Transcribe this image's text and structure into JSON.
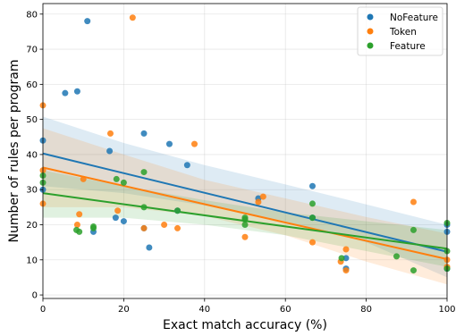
{
  "chart_data": {
    "type": "scatter",
    "xlabel": "Exact match accuracy (%)",
    "ylabel": "Number of rules per program",
    "xlim": [
      0,
      100
    ],
    "ylim": [
      -1,
      83
    ],
    "xticks": [
      0,
      20,
      40,
      60,
      80,
      100
    ],
    "yticks": [
      0,
      10,
      20,
      30,
      40,
      50,
      60,
      70,
      80
    ],
    "grid": true,
    "legend": "top-right",
    "series": [
      {
        "name": "NoFeature",
        "color": "#1f77b4",
        "points": [
          [
            0,
            44
          ],
          [
            0,
            30
          ],
          [
            5.5,
            57.5
          ],
          [
            8.5,
            58
          ],
          [
            11,
            78
          ],
          [
            12.5,
            18
          ],
          [
            16.5,
            41
          ],
          [
            18,
            22
          ],
          [
            20,
            21
          ],
          [
            25,
            46
          ],
          [
            25,
            19
          ],
          [
            26.3,
            13.5
          ],
          [
            31.3,
            43
          ],
          [
            33.3,
            24
          ],
          [
            35.7,
            37
          ],
          [
            53.3,
            27.5
          ],
          [
            66.7,
            31
          ],
          [
            66.7,
            22
          ],
          [
            75,
            10.5
          ],
          [
            75,
            7.5
          ],
          [
            100,
            18
          ],
          [
            100,
            7.5
          ],
          [
            100,
            20
          ]
        ],
        "fit": {
          "x": [
            0,
            100
          ],
          "y": [
            40.3,
            12.3
          ]
        },
        "ci": {
          "x": [
            0,
            20,
            40,
            60,
            80,
            100
          ],
          "upper": [
            50.8,
            43.3,
            37.0,
            31.5,
            25.8,
            20.0
          ],
          "lower": [
            31.0,
            29.0,
            25.5,
            21.0,
            15.0,
            5.0
          ]
        }
      },
      {
        "name": "Token",
        "color": "#ff7f0e",
        "points": [
          [
            0,
            54
          ],
          [
            0,
            35.5
          ],
          [
            0,
            26
          ],
          [
            8.5,
            20
          ],
          [
            9,
            23
          ],
          [
            10,
            33
          ],
          [
            16.7,
            46
          ],
          [
            18.5,
            24
          ],
          [
            22.2,
            79
          ],
          [
            25,
            19
          ],
          [
            30,
            20
          ],
          [
            33.3,
            19
          ],
          [
            37.5,
            43
          ],
          [
            50,
            16.5
          ],
          [
            53.3,
            26.5
          ],
          [
            54.5,
            28
          ],
          [
            66.7,
            15
          ],
          [
            73.7,
            9.5
          ],
          [
            75,
            13
          ],
          [
            75,
            7
          ],
          [
            91.7,
            26.5
          ],
          [
            100,
            10
          ],
          [
            100,
            8
          ]
        ],
        "fit": {
          "x": [
            0,
            100
          ],
          "y": [
            36.3,
            10.2
          ]
        },
        "ci": {
          "x": [
            0,
            20,
            40,
            60,
            80,
            100
          ],
          "upper": [
            47.5,
            40.0,
            32.8,
            27.5,
            22.2,
            17.5
          ],
          "lower": [
            25.0,
            25.0,
            22.5,
            17.0,
            9.5,
            3.0
          ]
        }
      },
      {
        "name": "Feature",
        "color": "#2ca02c",
        "points": [
          [
            0,
            34
          ],
          [
            0,
            32
          ],
          [
            8.3,
            18.5
          ],
          [
            9,
            18
          ],
          [
            12.5,
            19.5
          ],
          [
            12.5,
            19
          ],
          [
            18.2,
            33
          ],
          [
            20,
            32
          ],
          [
            25,
            35
          ],
          [
            25,
            25
          ],
          [
            33.3,
            24
          ],
          [
            50,
            20
          ],
          [
            50,
            21.5
          ],
          [
            50,
            22
          ],
          [
            66.7,
            26
          ],
          [
            66.7,
            22
          ],
          [
            73.9,
            10.5
          ],
          [
            87.5,
            11
          ],
          [
            91.7,
            18.5
          ],
          [
            91.7,
            7
          ],
          [
            100,
            20.5
          ],
          [
            100,
            12.5
          ],
          [
            100,
            7.5
          ]
        ],
        "fit": {
          "x": [
            0,
            100
          ],
          "y": [
            29.0,
            13.2
          ]
        },
        "ci": {
          "x": [
            0,
            20,
            40,
            60,
            80,
            100
          ],
          "upper": [
            35.5,
            31.0,
            27.0,
            23.5,
            21.0,
            18.5
          ],
          "lower": [
            22.0,
            22.0,
            20.0,
            17.0,
            12.5,
            8.0
          ]
        }
      }
    ]
  }
}
